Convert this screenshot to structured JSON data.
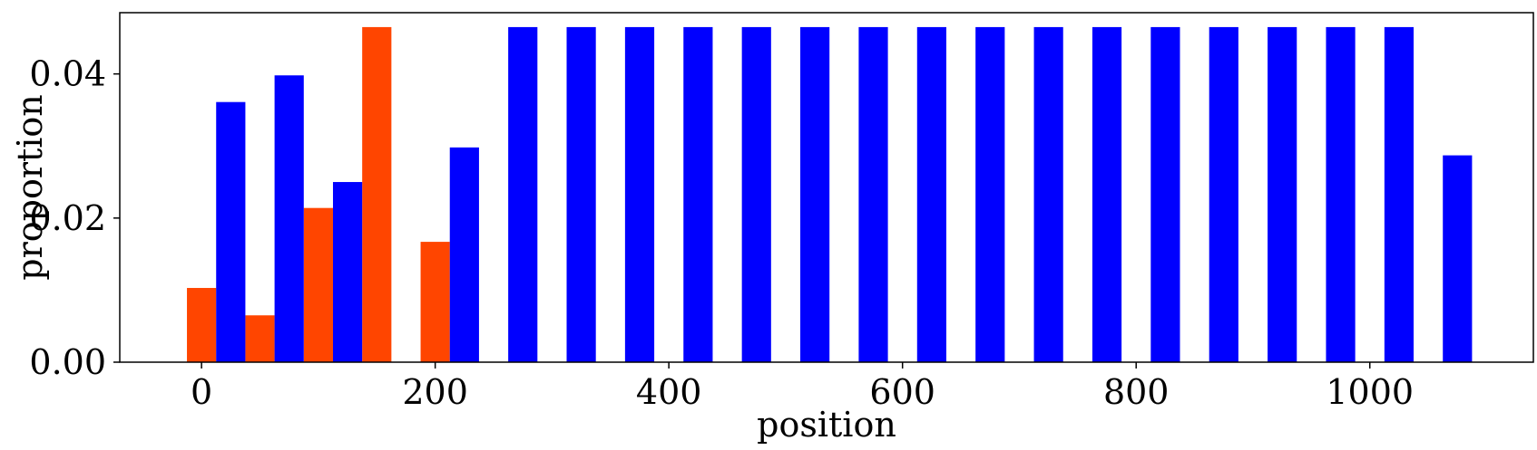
{
  "chart_data": {
    "type": "bar",
    "xlabel": "position",
    "ylabel": "proportion",
    "xlim": [
      -70,
      1140
    ],
    "ylim": [
      0,
      0.0485
    ],
    "xticks": [
      {
        "value": 0,
        "label": "0"
      },
      {
        "value": 200,
        "label": "200"
      },
      {
        "value": 400,
        "label": "400"
      },
      {
        "value": 600,
        "label": "600"
      },
      {
        "value": 800,
        "label": "800"
      },
      {
        "value": 1000,
        "label": "1000"
      }
    ],
    "yticks": [
      {
        "value": 0,
        "label": "0.00"
      },
      {
        "value": 0.02,
        "label": "0.02"
      },
      {
        "value": 0.04,
        "label": "0.04"
      }
    ],
    "bar_width": 25,
    "grid": false,
    "legend": "none",
    "series": [
      {
        "color": "#ff4500",
        "points": [
          {
            "x": 0,
            "y": 0.0103
          },
          {
            "x": 50,
            "y": 0.0065
          },
          {
            "x": 100,
            "y": 0.0214
          },
          {
            "x": 150,
            "y": 0.0465
          },
          {
            "x": 200,
            "y": 0.0167
          }
        ]
      },
      {
        "color": "#0000ff",
        "points": [
          {
            "x": 25,
            "y": 0.0361
          },
          {
            "x": 75,
            "y": 0.0398
          },
          {
            "x": 125,
            "y": 0.025
          },
          {
            "x": 225,
            "y": 0.0298
          },
          {
            "x": 275,
            "y": 0.0465
          },
          {
            "x": 325,
            "y": 0.0465
          },
          {
            "x": 375,
            "y": 0.0465
          },
          {
            "x": 425,
            "y": 0.0465
          },
          {
            "x": 475,
            "y": 0.0465
          },
          {
            "x": 525,
            "y": 0.0465
          },
          {
            "x": 575,
            "y": 0.0465
          },
          {
            "x": 625,
            "y": 0.0465
          },
          {
            "x": 675,
            "y": 0.0465
          },
          {
            "x": 725,
            "y": 0.0465
          },
          {
            "x": 775,
            "y": 0.0465
          },
          {
            "x": 825,
            "y": 0.0465
          },
          {
            "x": 875,
            "y": 0.0465
          },
          {
            "x": 925,
            "y": 0.0465
          },
          {
            "x": 975,
            "y": 0.0465
          },
          {
            "x": 1025,
            "y": 0.0465
          },
          {
            "x": 1075,
            "y": 0.0287
          }
        ]
      }
    ]
  }
}
